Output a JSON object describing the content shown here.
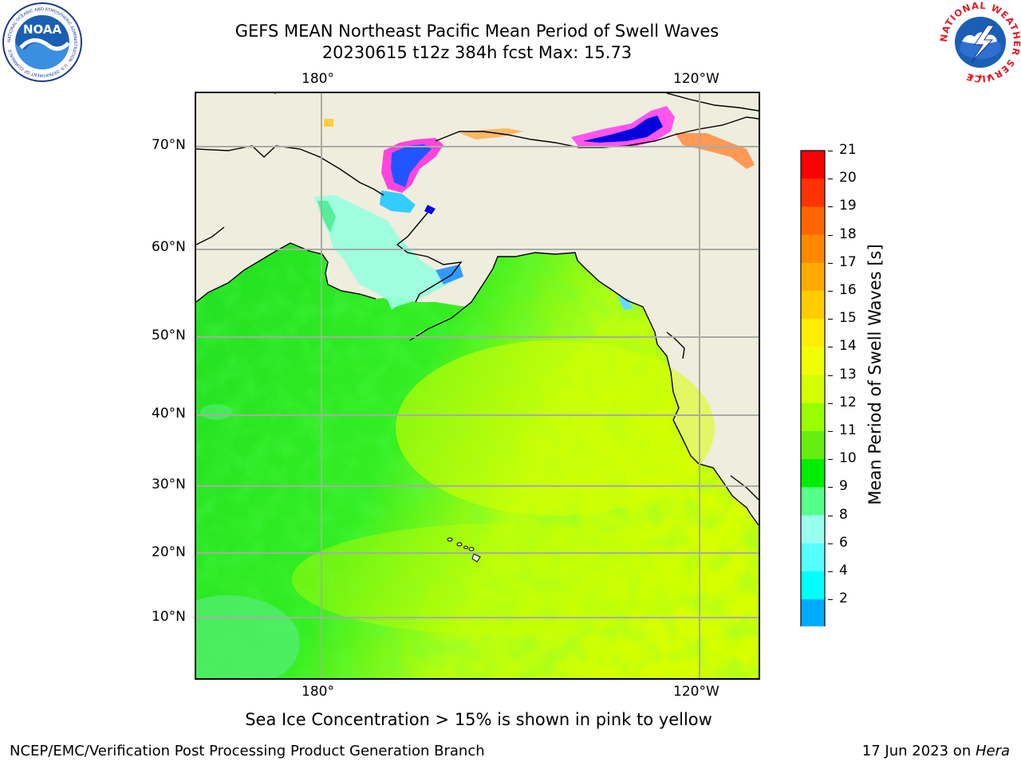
{
  "title": {
    "line1": "GEFS MEAN Northeast Pacific Mean Period of Swell Waves",
    "line2": "20230615 t12z 384h fcst   Max: 15.73"
  },
  "map": {
    "lon_labels_top": [
      "180°",
      "120°W"
    ],
    "lon_labels_bottom": [
      "180°",
      "120°W"
    ],
    "lat_labels": [
      "70°N",
      "60°N",
      "50°N",
      "40°N",
      "30°N",
      "20°N",
      "10°N"
    ],
    "gridlines": true,
    "ocean_color_dominant": "#33ee33",
    "land_color": "#efedde"
  },
  "colorbar": {
    "label": "Mean Period of Swell Waves [s]",
    "ticks": [
      "21",
      "20",
      "19",
      "18",
      "17",
      "16",
      "15",
      "14",
      "13",
      "12",
      "11",
      "10",
      "9",
      "8",
      "6",
      "4",
      "2"
    ],
    "colors": [
      "#ff0000",
      "#ff3300",
      "#ff6600",
      "#ff8800",
      "#ffaa00",
      "#ffcc00",
      "#ffee00",
      "#f0ff00",
      "#d4ff00",
      "#99ff00",
      "#66ee11",
      "#00ee00",
      "#55ff88",
      "#99ffee",
      "#55ffff",
      "#00ffff",
      "#00aaff",
      "#0066ff"
    ],
    "extend_color": "#0000ee"
  },
  "note": "Sea Ice Concentration > 15% is shown in pink to yellow",
  "footer": {
    "left": "NCEP/EMC/Verification Post Processing Product Generation Branch",
    "right_date": "17 Jun 2023 on ",
    "right_host": "Hera"
  },
  "logos": {
    "left": "NOAA",
    "left_ring": "NATIONAL OCEANIC AND ATMOSPHERIC ADMINISTRATION · U.S. DEPARTMENT OF COMMERCE",
    "right_ring": "NATIONAL WEATHER SERVICE"
  }
}
